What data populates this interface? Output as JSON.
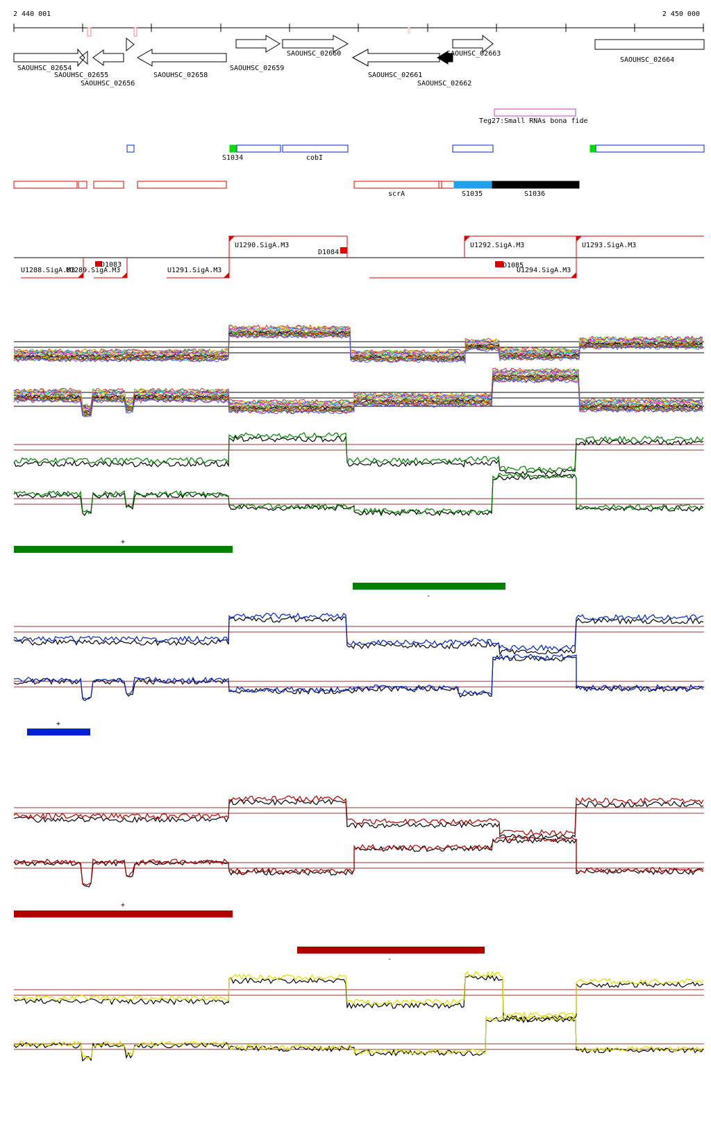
{
  "coords": {
    "start": "2 440 001",
    "end": "2 450 000"
  },
  "colors": {
    "green": "#008000",
    "blue": "#0022cc",
    "red": "#b00000",
    "yellow": "#dddd00",
    "rna_magenta": "#cc33cc",
    "seg_green": "#00dd00",
    "seg_cyan": "#22a0e8",
    "seg_black": "#000000",
    "promoter_red": "#e00000",
    "dark_red": "#993333"
  },
  "genes": [
    {
      "label": "SAOUHSC_02654"
    },
    {
      "label": "SAOUHSC_02655"
    },
    {
      "label": "SAOUHSC_02656"
    },
    {
      "label": "SAOUHSC_02658"
    },
    {
      "label": "SAOUHSC_02659"
    },
    {
      "label": "SAOUHSC_02660"
    },
    {
      "label": "SAOUHSC_02661"
    },
    {
      "label": "SAOUHSC_02662"
    },
    {
      "label": "SAOUHSC_02663"
    },
    {
      "label": "SAOUHSC_02664"
    }
  ],
  "srna": {
    "label": "Teg27:Small RNAs bona fide"
  },
  "segments": [
    {
      "label": "S1034"
    },
    {
      "label": "cobI"
    },
    {
      "label": "scrA"
    },
    {
      "label": "S1035"
    },
    {
      "label": "S1036"
    }
  ],
  "promoters": [
    {
      "label": "U1290.SigA.M3"
    },
    {
      "label": "D1084"
    },
    {
      "label": "U1292.SigA.M3"
    },
    {
      "label": "U1293.SigA.M3"
    },
    {
      "label": "U1288.SigA.M3"
    },
    {
      "label": "U1289.SigA.M3"
    },
    {
      "label": "D1083"
    },
    {
      "label": "U1291.SigA.M3"
    },
    {
      "label": "D1085"
    },
    {
      "label": "U1294.SigA.M3"
    }
  ],
  "strands": {
    "plus": "+",
    "minus": "-"
  }
}
